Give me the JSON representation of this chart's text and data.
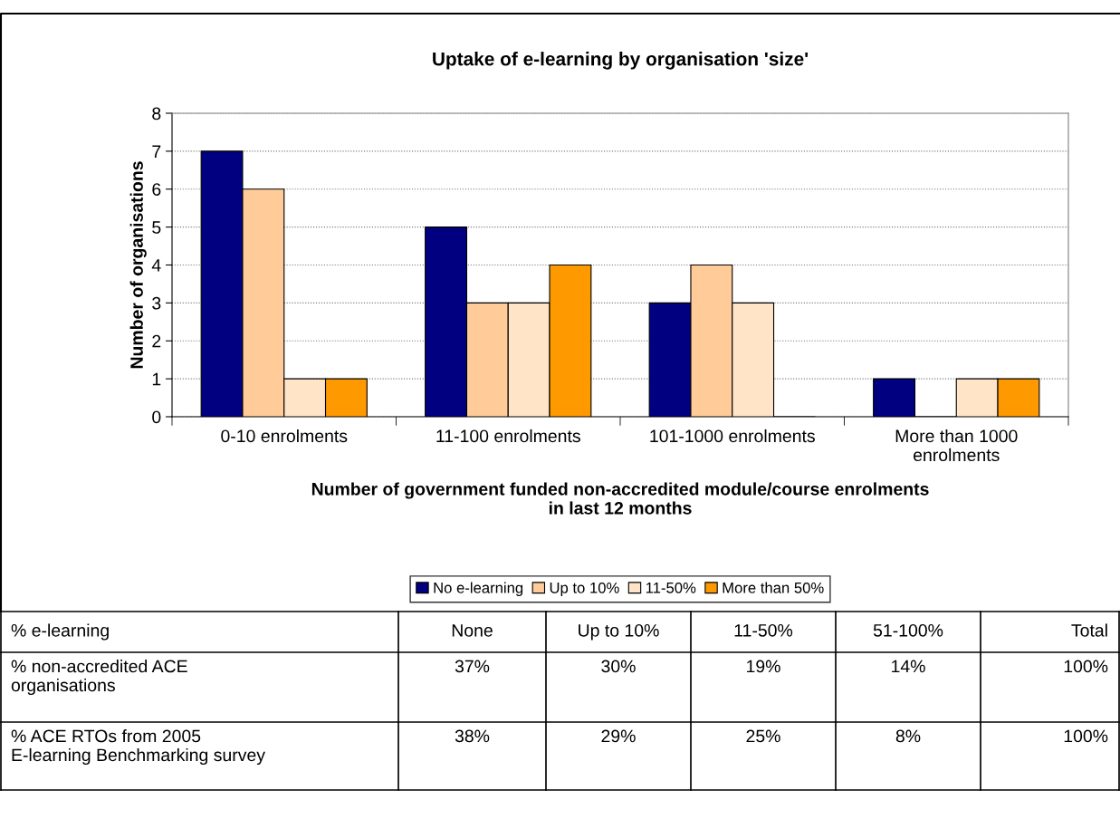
{
  "chart_data": [
    {
      "type": "bar",
      "title": "Uptake of e-learning by organisation 'size'",
      "xlabel": "Number of government funded non-accredited module/course enrolments\nin last 12 months",
      "ylabel": "Number of organisations",
      "categories": [
        "0-10 enrolments",
        "11-100 enrolments",
        "101-1000 enrolments",
        "More than 1000\nenrolments"
      ],
      "series": [
        {
          "name": "No e-learning",
          "color": "#000080",
          "values": [
            7,
            5,
            3,
            1
          ]
        },
        {
          "name": "Up to 10%",
          "color": "#ffcc99",
          "values": [
            6,
            3,
            4,
            0
          ]
        },
        {
          "name": "11-50%",
          "color": "#ffe4c8",
          "values": [
            1,
            3,
            3,
            1
          ]
        },
        {
          "name": "More than 50%",
          "color": "#ff9900",
          "values": [
            1,
            4,
            0,
            1
          ]
        }
      ],
      "ylim": [
        0,
        8
      ],
      "yticks": [
        0,
        1,
        2,
        3,
        4,
        5,
        6,
        7,
        8
      ],
      "grid": "y",
      "legend": "bottom"
    },
    {
      "type": "other",
      "title": "% e-learning",
      "categories": [
        "None",
        "Up to 10%",
        "11-50%",
        "51-100%",
        "Total"
      ],
      "series": [
        {
          "name": "% non-accredited ACE\norganisations",
          "values": [
            37,
            30,
            19,
            14,
            100
          ],
          "value_labels": [
            "37%",
            "30%",
            "19%",
            "14%",
            "100%"
          ]
        },
        {
          "name": "% ACE RTOs from 2005\nE-learning Benchmarking survey",
          "values": [
            38,
            29,
            25,
            8,
            100
          ],
          "value_labels": [
            "38%",
            "29%",
            "25%",
            "8%",
            "100%"
          ]
        }
      ]
    }
  ]
}
